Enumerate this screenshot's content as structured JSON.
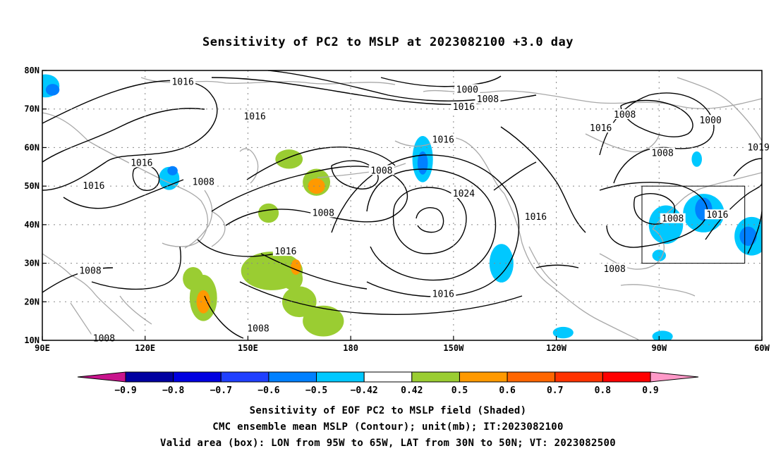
{
  "title": "Sensitivity of PC2 to MSLP at 2023082100 +3.0 day",
  "map": {
    "lon_range": [
      90,
      300
    ],
    "lat_range": [
      10,
      80
    ],
    "lat_ticks": [
      {
        "value": 80,
        "label": "80N"
      },
      {
        "value": 70,
        "label": "70N"
      },
      {
        "value": 60,
        "label": "60N"
      },
      {
        "value": 50,
        "label": "50N"
      },
      {
        "value": 40,
        "label": "40N"
      },
      {
        "value": 30,
        "label": "30N"
      },
      {
        "value": 20,
        "label": "20N"
      },
      {
        "value": 10,
        "label": "10N"
      }
    ],
    "lon_ticks": [
      {
        "value": 90,
        "label": "90E"
      },
      {
        "value": 120,
        "label": "120E"
      },
      {
        "value": 150,
        "label": "150E"
      },
      {
        "value": 180,
        "label": "180"
      },
      {
        "value": 210,
        "label": "150W"
      },
      {
        "value": 240,
        "label": "120W"
      },
      {
        "value": 270,
        "label": "90W"
      },
      {
        "value": 300,
        "label": "60W"
      }
    ],
    "valid_box": {
      "lon": [
        265,
        295
      ],
      "lat": [
        30,
        50
      ]
    },
    "contour_labels": [
      {
        "text": "1016",
        "lon": 131,
        "lat": 77
      },
      {
        "text": "1016",
        "lon": 152,
        "lat": 68
      },
      {
        "text": "1016",
        "lon": 119,
        "lat": 56
      },
      {
        "text": "1016",
        "lon": 105,
        "lat": 50
      },
      {
        "text": "1008",
        "lon": 137,
        "lat": 51
      },
      {
        "text": "1008",
        "lon": 189,
        "lat": 54
      },
      {
        "text": "1008",
        "lon": 172,
        "lat": 43
      },
      {
        "text": "1016",
        "lon": 161,
        "lat": 33
      },
      {
        "text": "1008",
        "lon": 104,
        "lat": 28
      },
      {
        "text": "1008",
        "lon": 153,
        "lat": 13
      },
      {
        "text": "1008",
        "lon": 108,
        "lat": 10.5
      },
      {
        "text": "1000",
        "lon": 214,
        "lat": 75
      },
      {
        "text": "1008",
        "lon": 220,
        "lat": 72.5
      },
      {
        "text": "1016",
        "lon": 213,
        "lat": 70.5
      },
      {
        "text": "1016",
        "lon": 207,
        "lat": 62
      },
      {
        "text": "1024",
        "lon": 213,
        "lat": 48
      },
      {
        "text": "1016",
        "lon": 234,
        "lat": 42
      },
      {
        "text": "1016",
        "lon": 207,
        "lat": 22
      },
      {
        "text": "1008",
        "lon": 260,
        "lat": 68.5
      },
      {
        "text": "1016",
        "lon": 253,
        "lat": 65
      },
      {
        "text": "1000",
        "lon": 285,
        "lat": 67
      },
      {
        "text": "1008",
        "lon": 271,
        "lat": 58.5
      },
      {
        "text": "1019",
        "lon": 299,
        "lat": 60
      },
      {
        "text": "1008",
        "lon": 274,
        "lat": 41.5
      },
      {
        "text": "1016",
        "lon": 287,
        "lat": 42.5
      },
      {
        "text": "1008",
        "lon": 257,
        "lat": 28.5
      }
    ],
    "shading": [
      {
        "level": -0.5,
        "color": "#00c8ff",
        "lon": 91,
        "lat": 76,
        "rx": 4,
        "ry": 3
      },
      {
        "level": -0.6,
        "color": "#0080ff",
        "lon": 93,
        "lat": 75,
        "rx": 2,
        "ry": 1.5
      },
      {
        "level": -0.5,
        "color": "#00c8ff",
        "lon": 127,
        "lat": 52,
        "rx": 3,
        "ry": 3
      },
      {
        "level": -0.6,
        "color": "#0080ff",
        "lon": 128,
        "lat": 54,
        "rx": 1.5,
        "ry": 1.2
      },
      {
        "level": 0.5,
        "color": "#9acd32",
        "lon": 162,
        "lat": 57,
        "rx": 4,
        "ry": 2.5
      },
      {
        "level": 0.5,
        "color": "#9acd32",
        "lon": 170,
        "lat": 51,
        "rx": 4,
        "ry": 3.5
      },
      {
        "level": 0.6,
        "color": "#ff9900",
        "lon": 170,
        "lat": 50,
        "rx": 2.5,
        "ry": 2
      },
      {
        "level": 0.5,
        "color": "#9acd32",
        "lon": 156,
        "lat": 43,
        "rx": 3,
        "ry": 2.5
      },
      {
        "level": -0.5,
        "color": "#00c8ff",
        "lon": 201,
        "lat": 57,
        "rx": 3,
        "ry": 6
      },
      {
        "level": -0.6,
        "color": "#0080ff",
        "lon": 201,
        "lat": 56,
        "rx": 1.5,
        "ry": 3
      },
      {
        "level": -0.5,
        "color": "#00c8ff",
        "lon": 224,
        "lat": 30,
        "rx": 3.5,
        "ry": 5
      },
      {
        "level": 0.5,
        "color": "#9acd32",
        "lon": 137,
        "lat": 21,
        "rx": 4,
        "ry": 6
      },
      {
        "level": 0.6,
        "color": "#ff9900",
        "lon": 137,
        "lat": 20,
        "rx": 2,
        "ry": 3
      },
      {
        "level": 0.5,
        "color": "#9acd32",
        "lon": 134,
        "lat": 26,
        "rx": 3,
        "ry": 3
      },
      {
        "level": 0.5,
        "color": "#9acd32",
        "lon": 163,
        "lat": 26,
        "rx": 3,
        "ry": 3
      },
      {
        "level": 0.5,
        "color": "#9acd32",
        "lon": 157,
        "lat": 28,
        "rx": 9,
        "ry": 5
      },
      {
        "level": 0.5,
        "color": "#9acd32",
        "lon": 165,
        "lat": 20,
        "rx": 5,
        "ry": 4
      },
      {
        "level": 0.5,
        "color": "#9acd32",
        "lon": 172,
        "lat": 15,
        "rx": 6,
        "ry": 4
      },
      {
        "level": 0.6,
        "color": "#ff9900",
        "lon": 164,
        "lat": 29,
        "rx": 1.5,
        "ry": 2
      },
      {
        "level": -0.5,
        "color": "#00c8ff",
        "lon": 272,
        "lat": 40,
        "rx": 5,
        "ry": 5
      },
      {
        "level": -0.5,
        "color": "#00c8ff",
        "lon": 283,
        "lat": 43,
        "rx": 6,
        "ry": 5
      },
      {
        "level": -0.6,
        "color": "#0080ff",
        "lon": 283,
        "lat": 44,
        "rx": 2.5,
        "ry": 3
      },
      {
        "level": -0.5,
        "color": "#00c8ff",
        "lon": 297,
        "lat": 37,
        "rx": 5,
        "ry": 5
      },
      {
        "level": -0.6,
        "color": "#0080ff",
        "lon": 296,
        "lat": 37,
        "rx": 2.5,
        "ry": 2.5
      },
      {
        "level": -0.5,
        "color": "#00c8ff",
        "lon": 242,
        "lat": 12,
        "rx": 3,
        "ry": 1.5
      },
      {
        "level": -0.5,
        "color": "#00c8ff",
        "lon": 271,
        "lat": 11,
        "rx": 3,
        "ry": 1.5
      },
      {
        "level": -0.5,
        "color": "#00c8ff",
        "lon": 281,
        "lat": 57,
        "rx": 1.5,
        "ry": 2
      },
      {
        "level": -0.5,
        "color": "#00c8ff",
        "lon": 270,
        "lat": 32,
        "rx": 2,
        "ry": 1.5
      }
    ]
  },
  "colorbar": {
    "labels": [
      "−0.9",
      "−0.8",
      "−0.7",
      "−0.6",
      "−0.5",
      "−0.42",
      "0.42",
      "0.5",
      "0.6",
      "0.7",
      "0.8",
      "0.9"
    ],
    "colors": [
      "#0000a0",
      "#0000e0",
      "#2040ff",
      "#0080ff",
      "#00c8ff",
      "#ffffff",
      "#9acd32",
      "#ff9900",
      "#ff6600",
      "#ff3300",
      "#ff0000"
    ],
    "low_color": "#c8148c",
    "high_color": "#ff99c8"
  },
  "captions": {
    "line1": "Sensitivity of EOF PC2 to MSLP field (Shaded)",
    "line2": "CMC ensemble mean MSLP (Contour); unit(mb); IT:2023082100",
    "line3": "Valid area (box): LON from 95W to 65W, LAT from 30N to 50N; VT: 2023082500"
  }
}
